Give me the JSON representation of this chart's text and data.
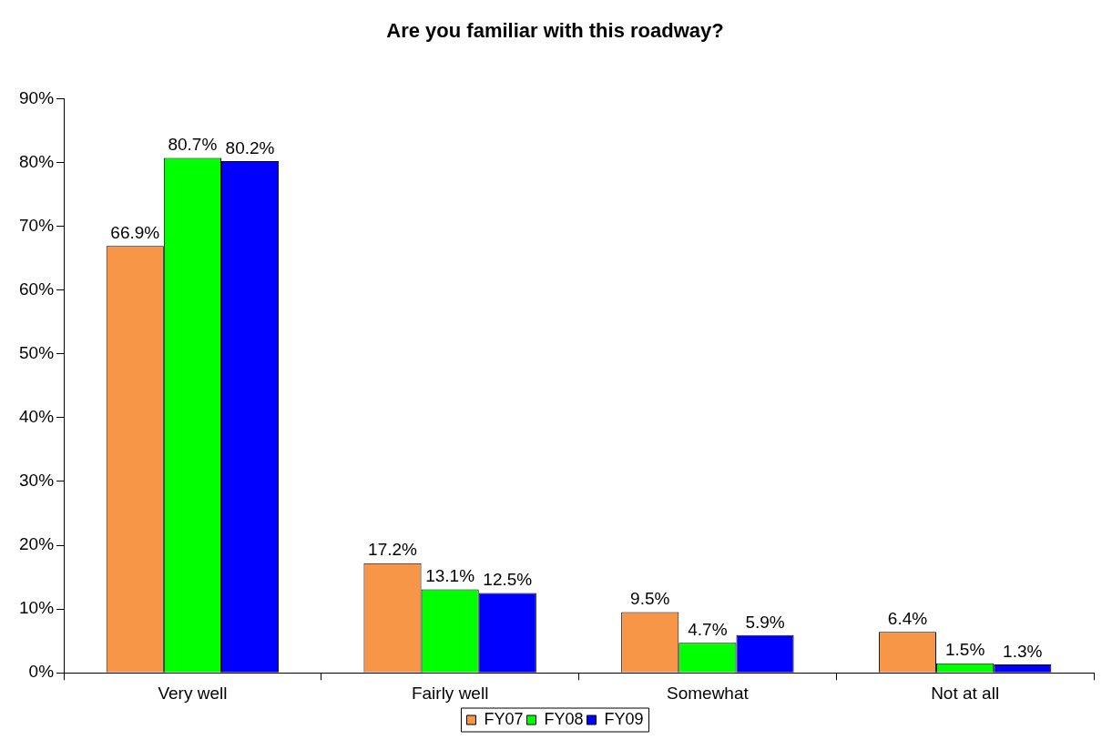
{
  "chart_data": {
    "type": "bar",
    "title": "Are you familiar with this roadway?",
    "categories": [
      "Very well",
      "Fairly well",
      "Somewhat",
      "Not at all"
    ],
    "series": [
      {
        "name": "FY07",
        "color": "#f79646",
        "values": [
          66.9,
          17.2,
          9.5,
          6.4
        ],
        "value_labels": [
          "66.9%",
          "17.2%",
          "9.5%",
          "6.4%"
        ]
      },
      {
        "name": "FY08",
        "color": "#00ff00",
        "values": [
          80.7,
          13.1,
          4.7,
          1.5
        ],
        "value_labels": [
          "80.7%",
          "13.1%",
          "4.7%",
          "1.5%"
        ]
      },
      {
        "name": "FY09",
        "color": "#0000ff",
        "values": [
          80.2,
          12.5,
          5.9,
          1.3
        ],
        "value_labels": [
          "80.2%",
          "12.5%",
          "5.9%",
          "1.3%"
        ]
      }
    ],
    "ylim": [
      0,
      90
    ],
    "yticks": [
      {
        "value": 0,
        "label": "0%"
      },
      {
        "value": 10,
        "label": "10%"
      },
      {
        "value": 20,
        "label": "20%"
      },
      {
        "value": 30,
        "label": "30%"
      },
      {
        "value": 40,
        "label": "40%"
      },
      {
        "value": 50,
        "label": "50%"
      },
      {
        "value": 60,
        "label": "60%"
      },
      {
        "value": 70,
        "label": "70%"
      },
      {
        "value": 80,
        "label": "80%"
      },
      {
        "value": 90,
        "label": "90%"
      }
    ],
    "grid": false,
    "legend": "bottom"
  }
}
